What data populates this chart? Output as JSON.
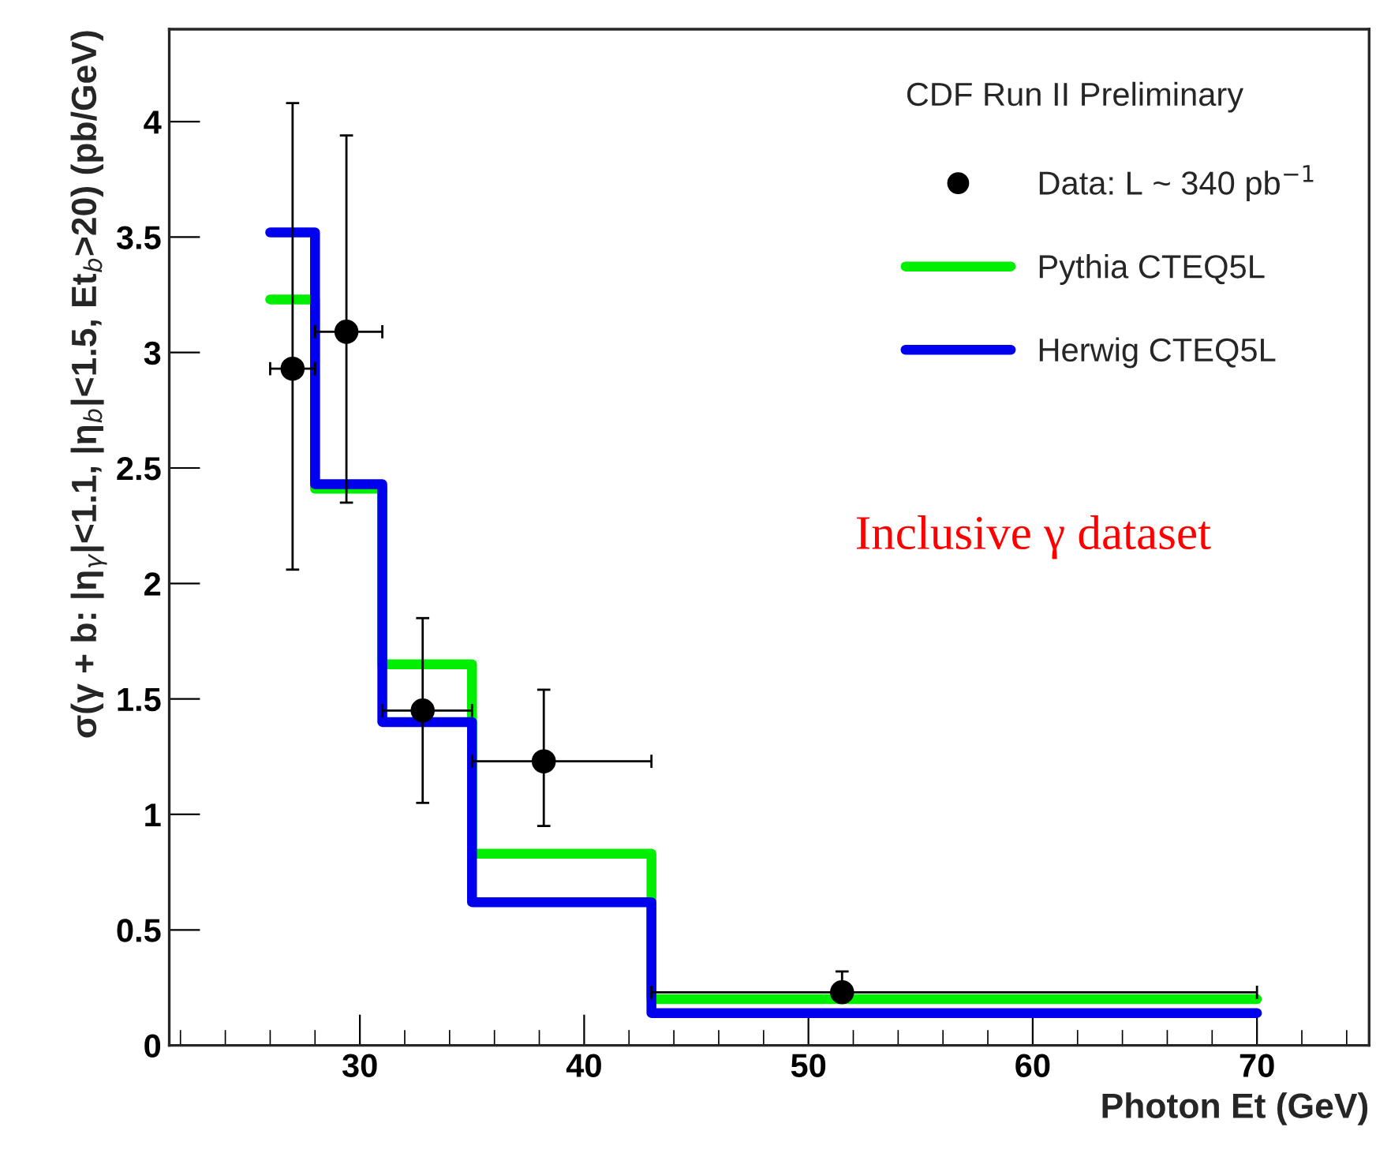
{
  "chart_data": {
    "type": "scatter",
    "xlabel": "Photon Et (GeV)",
    "ylabel": "σ(γ + b: |η$_{γ}$|<1.1, |η$_{b}$|<1.5, Et$_{b}$>20) (pb/GeV)",
    "legend_title": "CDF Run II Preliminary",
    "annotations": [
      "Inclusive γ dataset"
    ],
    "xlim": [
      21.5,
      75
    ],
    "ylim": [
      0,
      4.4
    ],
    "xticks": [
      30,
      40,
      50,
      60,
      70
    ],
    "yticks": [
      0,
      0.5,
      1,
      1.5,
      2,
      2.5,
      3,
      3.5,
      4
    ],
    "legend": "top right",
    "grid": false,
    "series": [
      {
        "name": "Data: L ~ 340 pb$^{−1}$",
        "marker": "circle",
        "color": "#000000",
        "x": [
          27,
          29.4,
          32.8,
          38.2,
          51.5
        ],
        "values": [
          2.93,
          3.09,
          1.45,
          1.23,
          0.23
        ],
        "errors": [
          [
            2.06,
            4.08
          ],
          [
            2.35,
            3.94
          ],
          [
            1.05,
            1.85
          ],
          [
            0.95,
            1.54
          ],
          [
            0.19,
            0.32
          ]
        ],
        "xerrors": [
          [
            26,
            28
          ],
          [
            28,
            31
          ],
          [
            31,
            35
          ],
          [
            35,
            43
          ],
          [
            43,
            70
          ]
        ]
      },
      {
        "name": "Pythia CTEQ5L",
        "type": "step",
        "color": "#00ee00",
        "x": [
          26,
          28,
          31,
          35,
          43,
          70
        ],
        "values": [
          3.23,
          2.41,
          1.65,
          0.83,
          0.2,
          0.2
        ]
      },
      {
        "name": "Herwig CTEQ5L",
        "type": "step",
        "color": "#0000ee",
        "x": [
          26,
          28,
          31,
          35,
          43,
          70
        ],
        "values": [
          3.52,
          2.43,
          1.4,
          0.62,
          0.14,
          0.14
        ]
      }
    ]
  }
}
